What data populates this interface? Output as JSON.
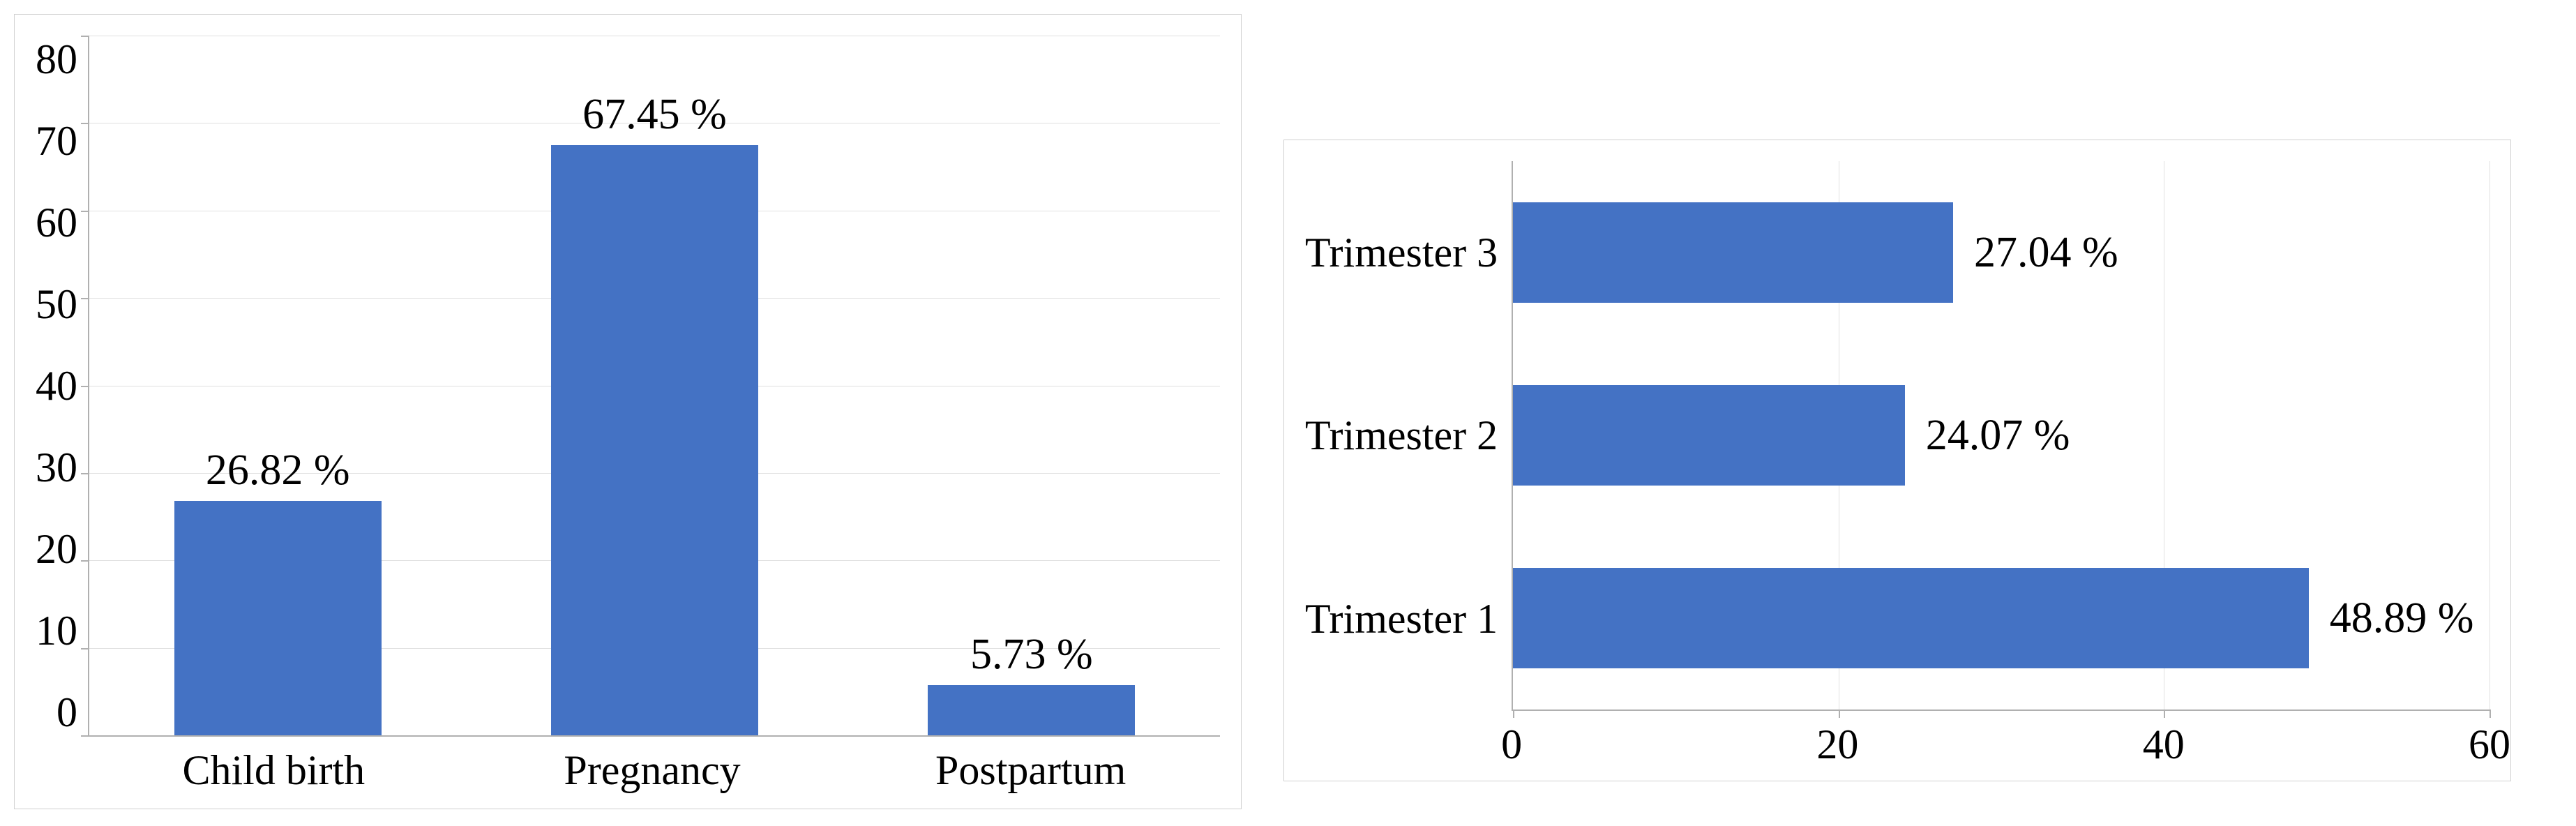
{
  "left_chart": {
    "type": "bar",
    "orientation": "vertical",
    "border_color": "#d0d0d0",
    "axis_color": "#b0b0b0",
    "grid_color": "#e0e0e0",
    "background_color": "#ffffff",
    "bar_color": "#4472c4",
    "label_fontsize": 62,
    "tick_fontsize": 60,
    "ylim": [
      0,
      80
    ],
    "ytick_step": 10,
    "yticks": [
      "0",
      "10",
      "20",
      "30",
      "40",
      "50",
      "60",
      "70",
      "80"
    ],
    "categories": [
      "Child birth",
      "Pregnancy",
      "Postpartum"
    ],
    "values": [
      26.82,
      67.45,
      5.73
    ],
    "value_labels": [
      "26.82 %",
      "67.45 %",
      "5.73 %"
    ],
    "bar_width_pct": 55
  },
  "right_chart": {
    "type": "bar",
    "orientation": "horizontal",
    "border_color": "#d0d0d0",
    "axis_color": "#b0b0b0",
    "grid_color": "#e0e0e0",
    "background_color": "#ffffff",
    "bar_color": "#4472c4",
    "label_fontsize": 62,
    "tick_fontsize": 60,
    "xlim": [
      0,
      60
    ],
    "xtick_step": 20,
    "xticks": [
      "0",
      "20",
      "40",
      "60"
    ],
    "categories": [
      "Trimester 3",
      "Trimester 2",
      "Trimester 1"
    ],
    "values": [
      27.04,
      24.07,
      48.89
    ],
    "value_labels": [
      "27.04 %",
      "24.07 %",
      "48.89 %"
    ],
    "bar_height_pct": 55
  }
}
